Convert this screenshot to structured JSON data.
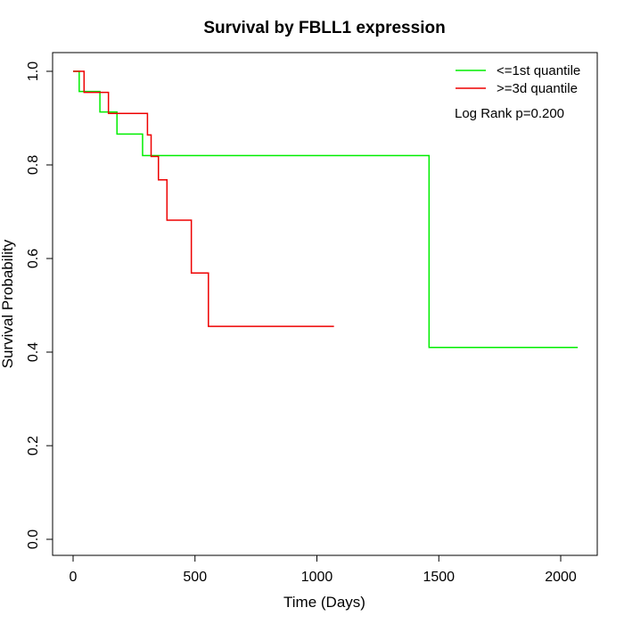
{
  "chart_data": {
    "type": "line",
    "subtype": "kaplan-meier step",
    "title": "Survival by FBLL1 expression",
    "xlabel": "Time (Days)",
    "ylabel": "Survival Probability",
    "xlim": [
      0,
      2070
    ],
    "ylim": [
      0,
      1
    ],
    "x_ticks": [
      0,
      500,
      1000,
      1500,
      2000
    ],
    "x_tick_labels": [
      "0",
      "500",
      "1000",
      "1500",
      "2000"
    ],
    "y_ticks": [
      0,
      0.2,
      0.4,
      0.6,
      0.8,
      1
    ],
    "y_tick_labels": [
      "0.0",
      "0.2",
      "0.4",
      "0.6",
      "0.8",
      "1.0"
    ],
    "grid": false,
    "legend_position": "top-right",
    "annotation": "Log Rank p=0.200",
    "series": [
      {
        "name": "<=1st quantile",
        "color": "#00ee00",
        "x": [
          0,
          25,
          110,
          180,
          285,
          1460,
          2070
        ],
        "y": [
          1.0,
          0.957,
          0.913,
          0.866,
          0.82,
          0.41,
          0.41
        ]
      },
      {
        "name": ">=3d quantile",
        "color": "#ee0000",
        "x": [
          0,
          45,
          145,
          305,
          320,
          350,
          385,
          485,
          555,
          1070
        ],
        "y": [
          1.0,
          0.955,
          0.91,
          0.864,
          0.818,
          0.768,
          0.682,
          0.569,
          0.455,
          0.455
        ]
      }
    ]
  }
}
